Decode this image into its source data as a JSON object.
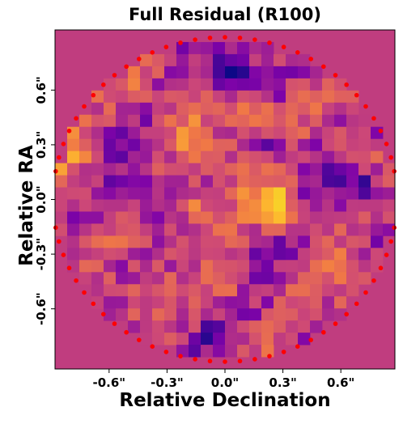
{
  "chart_data": {
    "type": "heatmap",
    "title": "Full Residual (R100)",
    "xlabel": "Relative Declination",
    "ylabel": "Relative RA",
    "x_ticks": [
      "-0.6\"",
      "-0.3\"",
      "0.0\"",
      "0.3\"",
      "0.6\""
    ],
    "y_ticks": [
      "0.6\"",
      "0.3\"",
      "0.0\"",
      "-0.3\"",
      "-0.6\""
    ],
    "x_tick_values": [
      -0.6,
      -0.3,
      0.0,
      0.3,
      0.6
    ],
    "y_tick_values": [
      0.6,
      0.3,
      0.0,
      -0.3,
      -0.6
    ],
    "xlim": [
      -0.88,
      0.88
    ],
    "ylim": [
      -0.93,
      0.93
    ],
    "grid": false,
    "colormap": "plasma",
    "background_value": 0.42,
    "aperture_radius": 0.89,
    "aperture_marker_color": "#ff0000",
    "hotspots": [
      {
        "x": 0.27,
        "y": -0.03,
        "value": 1.0
      },
      {
        "x": 0.0,
        "y": -0.48,
        "value": 0.82
      },
      {
        "x": -0.82,
        "y": 0.25,
        "value": 0.72
      },
      {
        "x": -0.2,
        "y": 0.35,
        "value": 0.7
      },
      {
        "x": 0.15,
        "y": 0.47,
        "value": 0.75
      },
      {
        "x": 0.62,
        "y": 0.25,
        "value": 0.68
      },
      {
        "x": -0.15,
        "y": -0.05,
        "value": 0.68
      }
    ],
    "coldspots": [
      {
        "x": 0.05,
        "y": 0.72,
        "value": 0.12
      },
      {
        "x": 0.52,
        "y": 0.7,
        "value": 0.15
      },
      {
        "x": 0.72,
        "y": 0.08,
        "value": 0.18
      },
      {
        "x": -0.05,
        "y": -0.78,
        "value": 0.2
      },
      {
        "x": 0.42,
        "y": -0.3,
        "value": 0.22
      },
      {
        "x": -0.55,
        "y": -0.35,
        "value": 0.28
      },
      {
        "x": 0.22,
        "y": 0.3,
        "value": 0.2
      }
    ]
  }
}
